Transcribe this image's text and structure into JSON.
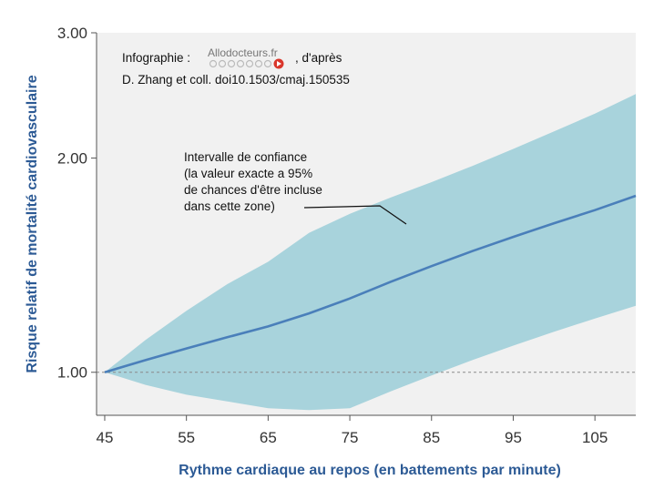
{
  "chart_data": {
    "type": "line",
    "xlabel": "Rythme cardiaque au repos (en battements par minute)",
    "ylabel": "Risque relatif de mortalité cardiovasculaire",
    "x_scale": "linear",
    "y_scale": "log",
    "xlim": [
      44,
      110
    ],
    "ylim": [
      0.87,
      3.0
    ],
    "x_ticks": [
      45,
      55,
      65,
      75,
      85,
      95,
      105
    ],
    "y_ticks": [
      {
        "value": 1.0,
        "label": "1.00"
      },
      {
        "value": 2.0,
        "label": "2.00"
      },
      {
        "value": 3.0,
        "label": "3.00"
      }
    ],
    "reference_line": {
      "y": 1.0,
      "style": "dashed"
    },
    "series": [
      {
        "x": [
          45,
          50,
          55,
          60,
          65,
          70,
          75,
          80,
          85,
          90,
          95,
          100,
          105,
          110
        ],
        "y": [
          1.0,
          1.04,
          1.08,
          1.12,
          1.16,
          1.21,
          1.27,
          1.34,
          1.41,
          1.48,
          1.55,
          1.62,
          1.69,
          1.77
        ],
        "color": "#4a7fba"
      }
    ],
    "confidence_band": {
      "x": [
        45,
        50,
        55,
        60,
        65,
        70,
        75,
        80,
        85,
        90,
        95,
        100,
        105,
        110
      ],
      "upper": [
        1.0,
        1.11,
        1.22,
        1.33,
        1.43,
        1.57,
        1.67,
        1.76,
        1.85,
        1.95,
        2.06,
        2.18,
        2.31,
        2.46
      ],
      "lower": [
        1.0,
        0.96,
        0.93,
        0.91,
        0.89,
        0.885,
        0.89,
        0.94,
        0.99,
        1.04,
        1.09,
        1.14,
        1.19,
        1.24
      ],
      "color": "#a8d3dc"
    },
    "annotation": {
      "lines": [
        "Intervalle de confiance",
        "(la valeur exacte a 95%",
        "de chances d'être incluse",
        "dans cette zone)"
      ]
    },
    "credit": {
      "prefix": "Infographie :",
      "logo_text": "Allodocteurs.fr",
      "suffix": ", d'après",
      "line2": "D. Zhang et coll. doi10.1503/cmaj.150535"
    }
  }
}
